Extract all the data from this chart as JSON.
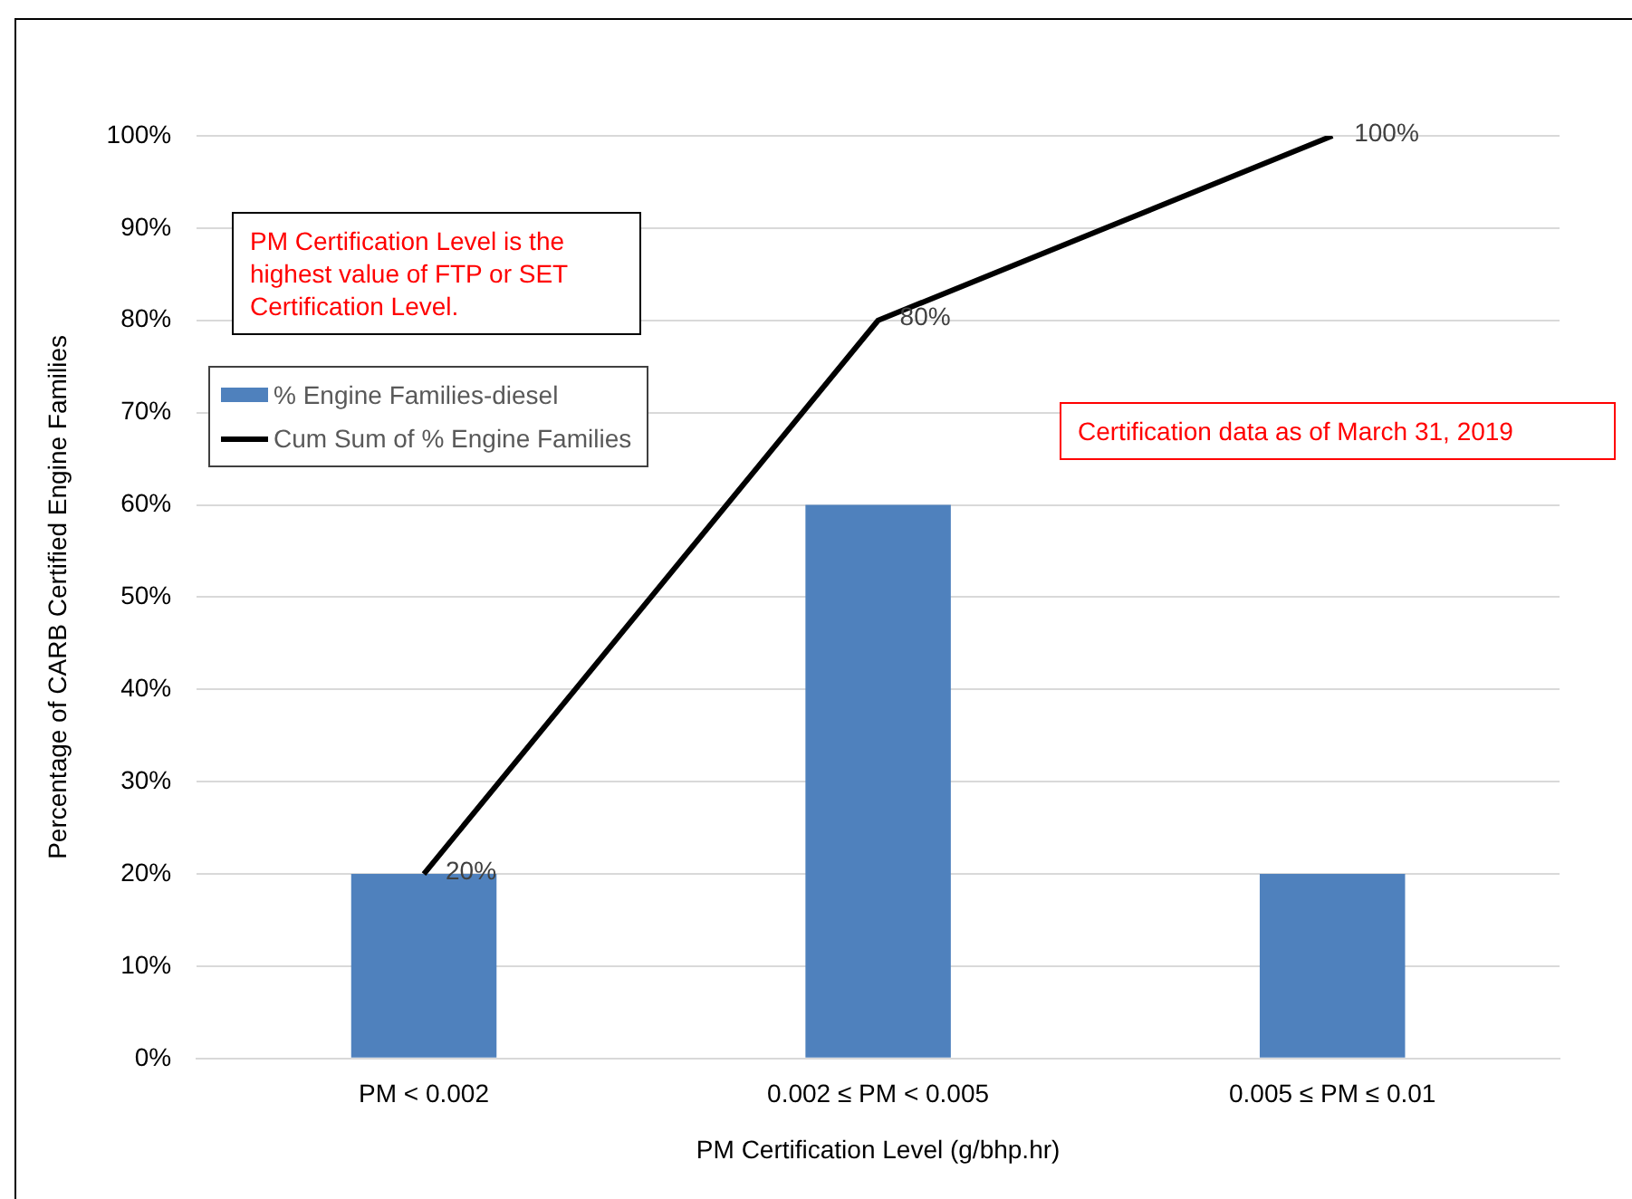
{
  "chart_data": {
    "type": "bar",
    "xlabel": "PM Certification Level (g/bhp.hr)",
    "ylabel": "Percentage of CARB Certified Engine Families",
    "categories": [
      "PM < 0.002",
      "0.002 ≤ PM < 0.005",
      "0.005 ≤ PM ≤ 0.01"
    ],
    "series": [
      {
        "name": "% Engine Families-diesel",
        "color": "#4f81bd",
        "values": [
          20,
          60,
          20
        ]
      },
      {
        "name": "Cum Sum of % Engine Families",
        "type": "line",
        "color": "#000000",
        "values": [
          20,
          80,
          100
        ],
        "value_labels": [
          "20%",
          "80%",
          "100%"
        ]
      }
    ],
    "ylim": [
      0,
      100
    ],
    "yticks": [
      {
        "value": 0,
        "label": "0%"
      },
      {
        "value": 10,
        "label": "10%"
      },
      {
        "value": 20,
        "label": "20%"
      },
      {
        "value": 30,
        "label": "30%"
      },
      {
        "value": 40,
        "label": "40%"
      },
      {
        "value": 50,
        "label": "50%"
      },
      {
        "value": 60,
        "label": "60%"
      },
      {
        "value": 70,
        "label": "70%"
      },
      {
        "value": 80,
        "label": "80%"
      },
      {
        "value": 90,
        "label": "90%"
      },
      {
        "value": 100,
        "label": "100%"
      }
    ],
    "grid": "y",
    "legend": "top left",
    "marker": "none",
    "line_style": "solid",
    "annotations": [
      "PM Certification Level is the highest value of FTP or SET Certification Level.",
      "Certification data as of March 31, 2019"
    ]
  }
}
